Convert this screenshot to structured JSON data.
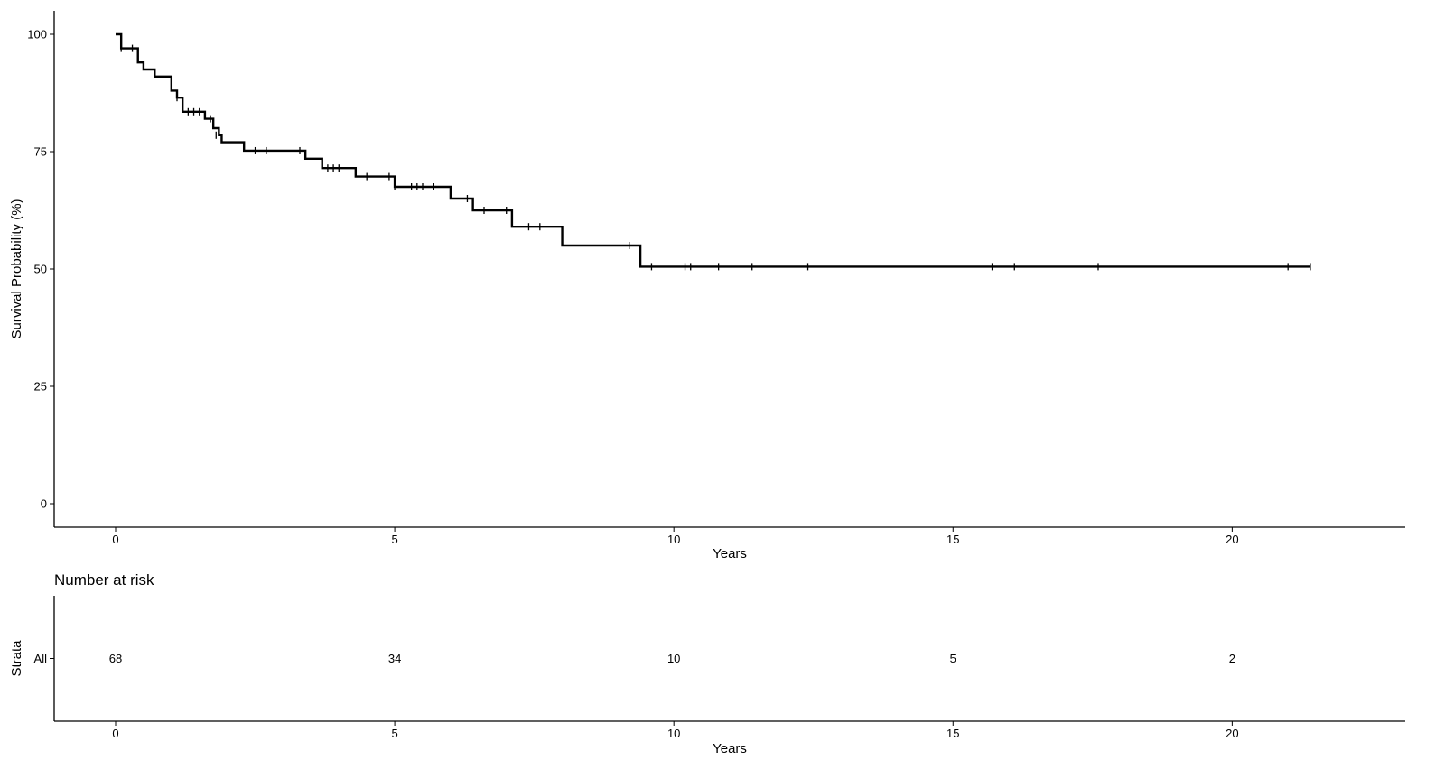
{
  "chart_data": [
    {
      "type": "line",
      "subtype": "kaplan-meier",
      "title": "",
      "xlabel": "Years",
      "ylabel": "Survival Probability (%)",
      "xlim": [
        -1.1,
        23.1
      ],
      "ylim": [
        -5,
        105
      ],
      "x_ticks": [
        0,
        5,
        10,
        15,
        20
      ],
      "y_ticks": [
        0,
        25,
        50,
        75,
        100
      ],
      "grid": false,
      "legend": "none",
      "line_color": "#000000",
      "series": [
        {
          "step_x": [
            0,
            0.1,
            0.4,
            0.5,
            0.7,
            1.0,
            1.1,
            1.2,
            1.6,
            1.75,
            1.85,
            1.9,
            2.3,
            3.4,
            3.7,
            4.3,
            5.0,
            6.0,
            6.4,
            7.1,
            8.0,
            9.4,
            21.4
          ],
          "step_y": [
            100,
            97,
            94,
            92.5,
            91,
            88,
            86.5,
            83.5,
            82,
            80,
            78.5,
            77,
            75.2,
            73.5,
            71.5,
            69.7,
            67.5,
            65,
            62.5,
            59,
            55,
            50.5,
            50.5
          ],
          "censor_x": [
            0.1,
            0.3,
            1.1,
            1.3,
            1.4,
            1.5,
            1.7,
            1.8,
            2.5,
            2.7,
            3.3,
            3.8,
            3.9,
            4.0,
            4.5,
            4.9,
            5.0,
            5.3,
            5.4,
            5.5,
            5.7,
            6.3,
            6.6,
            7.0,
            7.4,
            7.6,
            9.2,
            9.6,
            10.2,
            10.3,
            10.8,
            11.4,
            12.4,
            15.7,
            16.1,
            17.6,
            21.0,
            21.4
          ],
          "censor_y": [
            97,
            97,
            86.5,
            83.5,
            83.5,
            83.5,
            82,
            78.5,
            75.2,
            75.2,
            75.2,
            71.5,
            71.5,
            71.5,
            69.7,
            69.7,
            67.5,
            67.5,
            67.5,
            67.5,
            67.5,
            65,
            62.5,
            62.5,
            59,
            59,
            55,
            50.5,
            50.5,
            50.5,
            50.5,
            50.5,
            50.5,
            50.5,
            50.5,
            50.5,
            50.5,
            50.5
          ]
        }
      ]
    },
    {
      "type": "table",
      "title": "Number at risk",
      "xlabel": "Years",
      "ylabel": "Strata",
      "x_ticks": [
        0,
        5,
        10,
        15,
        20
      ],
      "rows": [
        {
          "name": "All",
          "values": [
            68,
            34,
            10,
            5,
            2
          ]
        }
      ]
    }
  ]
}
